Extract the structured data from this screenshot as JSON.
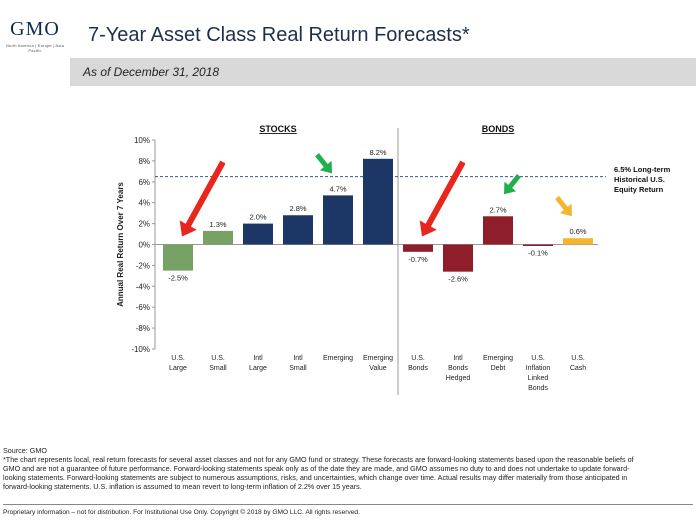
{
  "header": {
    "logo": "GMO",
    "logo_sub": "North America | Europe | Asia Pacific",
    "title": "7-Year Asset Class Real Return Forecasts*",
    "subtitle": "As of December 31, 2018"
  },
  "chart_data": {
    "type": "bar",
    "ylabel": "Annual Real Return Over 7 Years",
    "ylim": [
      -10,
      10
    ],
    "yticks": [
      "10%",
      "8%",
      "6%",
      "4%",
      "2%",
      "0%",
      "-2%",
      "-4%",
      "-6%",
      "-8%",
      "-10%"
    ],
    "groups": [
      {
        "label": "STOCKS"
      },
      {
        "label": "BONDS"
      }
    ],
    "categories": [
      {
        "label": [
          "U.S.",
          "Large"
        ],
        "value": -2.5,
        "value_label": "-2.5%",
        "color": "#77a165",
        "group": "STOCKS"
      },
      {
        "label": [
          "U.S.",
          "Small"
        ],
        "value": 1.3,
        "value_label": "1.3%",
        "color": "#77a165",
        "group": "STOCKS"
      },
      {
        "label": [
          "Intl",
          "Large"
        ],
        "value": 2.0,
        "value_label": "2.0%",
        "color": "#1c3765",
        "group": "STOCKS"
      },
      {
        "label": [
          "Intl",
          "Small"
        ],
        "value": 2.8,
        "value_label": "2.8%",
        "color": "#1c3765",
        "group": "STOCKS"
      },
      {
        "label": [
          "Emerging"
        ],
        "value": 4.7,
        "value_label": "4.7%",
        "color": "#1c3765",
        "group": "STOCKS"
      },
      {
        "label": [
          "Emerging",
          "Value"
        ],
        "value": 8.2,
        "value_label": "8.2%",
        "color": "#1c3765",
        "group": "STOCKS"
      },
      {
        "label": [
          "U.S.",
          "Bonds"
        ],
        "value": -0.7,
        "value_label": "-0.7%",
        "color": "#8e1f2a",
        "group": "BONDS"
      },
      {
        "label": [
          "Intl",
          "Bonds",
          "Hedged"
        ],
        "value": -2.6,
        "value_label": "-2.6%",
        "color": "#8e1f2a",
        "group": "BONDS"
      },
      {
        "label": [
          "Emerging",
          "Debt"
        ],
        "value": 2.7,
        "value_label": "2.7%",
        "color": "#8e1f2a",
        "group": "BONDS"
      },
      {
        "label": [
          "U.S.",
          "Inflation",
          "Linked",
          "Bonds"
        ],
        "value": -0.1,
        "value_label": "-0.1%",
        "color": "#8e1f2a",
        "group": "BONDS"
      },
      {
        "label": [
          "U.S.",
          "Cash"
        ],
        "value": 0.6,
        "value_label": "0.6%",
        "color": "#f2b630",
        "group": "BONDS"
      }
    ],
    "reference_line": {
      "value": 6.5,
      "label": [
        "6.5% Long-term",
        "Historical U.S.",
        "Equity Return"
      ],
      "color": "#2e5b8a"
    },
    "annotations": [
      {
        "type": "arrow",
        "color": "#e8261e",
        "target_index": 0,
        "direction": "down-left",
        "size": "large"
      },
      {
        "type": "arrow",
        "color": "#20b04b",
        "target_index": 4,
        "direction": "down-right",
        "size": "small"
      },
      {
        "type": "arrow",
        "color": "#e8261e",
        "target_index": 6,
        "direction": "down-left",
        "size": "large"
      },
      {
        "type": "arrow",
        "color": "#20b04b",
        "target_index": 8,
        "direction": "down-left",
        "size": "small"
      },
      {
        "type": "arrow",
        "color": "#f2b630",
        "target_index": 10,
        "direction": "down-right",
        "size": "small"
      }
    ],
    "grid": false
  },
  "footer": {
    "source": "Source: GMO",
    "note_lines": [
      "*The chart represents local, real return forecasts for several asset classes and not for any GMO fund or strategy.  These forecasts are forward-looking statements based upon the reasonable beliefs of",
      "GMO and are not a guarantee of future performance.  Forward-looking statements speak only as of the date they are made, and GMO assumes no duty to and does not undertake to update forward-",
      "looking statements.  Forward-looking statements are subject to numerous assumptions, risks, and uncertainties, which change over time.  Actual results may differ materially from those anticipated in",
      "forward-looking statements. U.S. inflation is assumed to mean revert to long-term inflation of 2.2% over 15 years."
    ],
    "proprietary": "Proprietary information – not for distribution. For Institutional Use Only. Copyright © 2018 by GMO LLC.  All rights reserved."
  }
}
